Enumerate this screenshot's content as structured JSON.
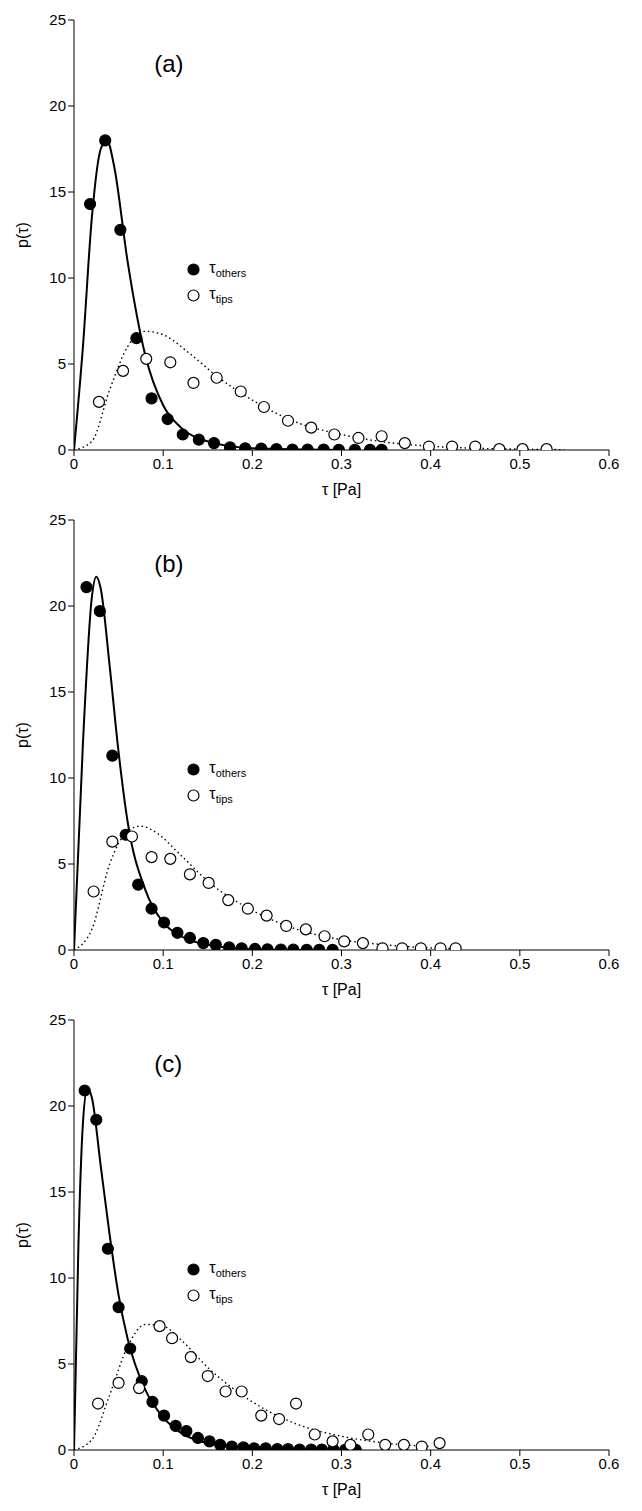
{
  "chart_data": [
    {
      "type": "scatter",
      "title": "(a)",
      "x_label": "τ [Pa]",
      "y_label": "p(τ)",
      "xlim": [
        0,
        0.6
      ],
      "xticks": [
        0,
        0.1,
        0.2,
        0.3,
        0.4,
        0.5,
        0.6
      ],
      "ylim": [
        0,
        25
      ],
      "yticks": [
        0,
        5,
        10,
        15,
        20,
        25
      ],
      "grid": false,
      "legend": "center",
      "series": [
        {
          "type": "line",
          "line_style": "solid",
          "color": "#000000",
          "x": [
            0,
            0.01,
            0.02,
            0.03,
            0.037,
            0.045,
            0.06,
            0.08,
            0.1,
            0.12,
            0.15,
            0.2,
            0.3
          ],
          "values": [
            0,
            6,
            13.5,
            17.5,
            18.0,
            16.5,
            11,
            5.5,
            2.6,
            1.3,
            0.5,
            0.1,
            0
          ]
        },
        {
          "type": "line",
          "line_style": "dotted",
          "color": "#000000",
          "x": [
            0,
            0.02,
            0.04,
            0.06,
            0.08,
            0.1,
            0.13,
            0.16,
            0.2,
            0.25,
            0.3,
            0.35,
            0.4,
            0.45,
            0.5,
            0.55
          ],
          "values": [
            0,
            0.5,
            3.5,
            6.0,
            6.9,
            6.7,
            5.6,
            4.3,
            2.9,
            1.6,
            0.9,
            0.45,
            0.22,
            0.1,
            0.05,
            0.02
          ]
        },
        {
          "name": "τothers",
          "type": "scatter",
          "marker": "filled_circle",
          "color": "#000000",
          "x": [
            0.018,
            0.035,
            0.052,
            0.07,
            0.087,
            0.105,
            0.122,
            0.14,
            0.157,
            0.175,
            0.192,
            0.21,
            0.227,
            0.245,
            0.262,
            0.28,
            0.297,
            0.315,
            0.332,
            0.345
          ],
          "values": [
            14.3,
            18.0,
            12.8,
            6.5,
            3.0,
            1.8,
            0.9,
            0.6,
            0.4,
            0.15,
            0.1,
            0.08,
            0.05,
            0.03,
            0.02,
            0.02,
            0.01,
            0.01,
            0.01,
            0.01
          ]
        },
        {
          "name": "τtips",
          "type": "scatter",
          "marker": "open_circle",
          "color": "#000000",
          "x": [
            0.028,
            0.055,
            0.081,
            0.108,
            0.134,
            0.16,
            0.187,
            0.213,
            0.24,
            0.266,
            0.292,
            0.319,
            0.345,
            0.371,
            0.398,
            0.424,
            0.45,
            0.477,
            0.503,
            0.53
          ],
          "values": [
            2.8,
            4.6,
            5.3,
            5.1,
            3.9,
            4.2,
            3.4,
            2.5,
            1.7,
            1.3,
            0.9,
            0.7,
            0.8,
            0.4,
            0.2,
            0.2,
            0.2,
            0.05,
            0.05,
            0.05
          ]
        }
      ]
    },
    {
      "type": "scatter",
      "title": "(b)",
      "x_label": "τ [Pa]",
      "y_label": "p(τ)",
      "xlim": [
        0,
        0.6
      ],
      "xticks": [
        0,
        0.1,
        0.2,
        0.3,
        0.4,
        0.5,
        0.6
      ],
      "ylim": [
        0,
        25
      ],
      "yticks": [
        0,
        5,
        10,
        15,
        20,
        25
      ],
      "grid": false,
      "legend": "center",
      "series": [
        {
          "type": "line",
          "line_style": "solid",
          "color": "#000000",
          "x": [
            0,
            0.01,
            0.02,
            0.025,
            0.03,
            0.04,
            0.05,
            0.06,
            0.08,
            0.1,
            0.12,
            0.15,
            0.2,
            0.28
          ],
          "values": [
            0,
            12,
            20.5,
            21.7,
            21,
            16.5,
            11.5,
            7.5,
            3.5,
            1.6,
            0.8,
            0.3,
            0.05,
            0
          ]
        },
        {
          "type": "line",
          "line_style": "dotted",
          "color": "#000000",
          "x": [
            0,
            0.02,
            0.04,
            0.06,
            0.075,
            0.09,
            0.12,
            0.15,
            0.2,
            0.25,
            0.3,
            0.35,
            0.4,
            0.43
          ],
          "values": [
            0,
            1.2,
            5.0,
            6.9,
            7.2,
            6.9,
            5.5,
            4.0,
            2.3,
            1.2,
            0.6,
            0.3,
            0.12,
            0.08
          ]
        },
        {
          "name": "τothers",
          "type": "scatter",
          "marker": "filled_circle",
          "color": "#000000",
          "x": [
            0.014,
            0.029,
            0.043,
            0.058,
            0.072,
            0.087,
            0.101,
            0.116,
            0.13,
            0.145,
            0.159,
            0.174,
            0.188,
            0.203,
            0.217,
            0.232,
            0.246,
            0.261,
            0.275,
            0.29
          ],
          "values": [
            21.1,
            19.7,
            11.3,
            6.7,
            3.8,
            2.4,
            1.6,
            1.0,
            0.7,
            0.4,
            0.3,
            0.15,
            0.1,
            0.06,
            0.04,
            0.03,
            0.02,
            0.01,
            0.01,
            0.01
          ]
        },
        {
          "name": "τtips",
          "type": "scatter",
          "marker": "open_circle",
          "color": "#000000",
          "x": [
            0.022,
            0.043,
            0.065,
            0.087,
            0.108,
            0.13,
            0.151,
            0.173,
            0.195,
            0.216,
            0.238,
            0.26,
            0.281,
            0.303,
            0.324,
            0.346,
            0.368,
            0.389,
            0.411,
            0.428
          ],
          "values": [
            3.4,
            6.3,
            6.6,
            5.4,
            5.3,
            4.4,
            3.9,
            2.9,
            2.4,
            2.0,
            1.4,
            1.2,
            0.8,
            0.5,
            0.4,
            0.1,
            0.1,
            0.1,
            0.1,
            0.1
          ]
        }
      ]
    },
    {
      "type": "scatter",
      "title": "(c)",
      "x_label": "τ [Pa]",
      "y_label": "p(τ)",
      "xlim": [
        0,
        0.6
      ],
      "xticks": [
        0,
        0.1,
        0.2,
        0.3,
        0.4,
        0.5,
        0.6
      ],
      "ylim": [
        0,
        25
      ],
      "yticks": [
        0,
        5,
        10,
        15,
        20,
        25
      ],
      "grid": false,
      "legend": "center",
      "series": [
        {
          "type": "line",
          "line_style": "solid",
          "color": "#000000",
          "x": [
            0,
            0.005,
            0.01,
            0.015,
            0.02,
            0.03,
            0.04,
            0.05,
            0.06,
            0.08,
            0.1,
            0.12,
            0.15,
            0.2,
            0.3
          ],
          "values": [
            0,
            12,
            19,
            21,
            20.5,
            16.5,
            12.5,
            9,
            6.5,
            3.5,
            1.9,
            1.0,
            0.4,
            0.08,
            0
          ]
        },
        {
          "type": "line",
          "line_style": "dotted",
          "color": "#000000",
          "x": [
            0,
            0.02,
            0.04,
            0.06,
            0.08,
            0.1,
            0.12,
            0.15,
            0.2,
            0.25,
            0.3,
            0.35,
            0.4
          ],
          "values": [
            0,
            0.6,
            3.2,
            6.0,
            7.3,
            7.2,
            6.4,
            4.8,
            2.8,
            1.5,
            0.8,
            0.4,
            0.2
          ]
        },
        {
          "name": "τothers",
          "type": "scatter",
          "marker": "filled_circle",
          "color": "#000000",
          "x": [
            0.012,
            0.025,
            0.038,
            0.05,
            0.063,
            0.076,
            0.088,
            0.101,
            0.114,
            0.126,
            0.139,
            0.152,
            0.164,
            0.177,
            0.19,
            0.202,
            0.215,
            0.228,
            0.24,
            0.253,
            0.266,
            0.278,
            0.291,
            0.304,
            0.316
          ],
          "values": [
            20.9,
            19.2,
            11.7,
            8.3,
            5.9,
            4.0,
            2.8,
            2.0,
            1.4,
            1.1,
            0.7,
            0.5,
            0.3,
            0.2,
            0.15,
            0.1,
            0.1,
            0.05,
            0.05,
            0.03,
            0.03,
            0.02,
            0.02,
            0.01,
            0.01
          ]
        },
        {
          "name": "τtips",
          "type": "scatter",
          "marker": "open_circle",
          "color": "#000000",
          "x": [
            0.027,
            0.05,
            0.073,
            0.096,
            0.11,
            0.131,
            0.15,
            0.17,
            0.188,
            0.21,
            0.23,
            0.249,
            0.27,
            0.29,
            0.31,
            0.33,
            0.349,
            0.37,
            0.39,
            0.41
          ],
          "values": [
            2.7,
            3.9,
            3.6,
            7.2,
            6.5,
            5.4,
            4.3,
            3.4,
            3.4,
            2.0,
            1.8,
            2.7,
            0.9,
            0.5,
            0.3,
            0.9,
            0.3,
            0.3,
            0.2,
            0.4
          ]
        }
      ]
    }
  ]
}
